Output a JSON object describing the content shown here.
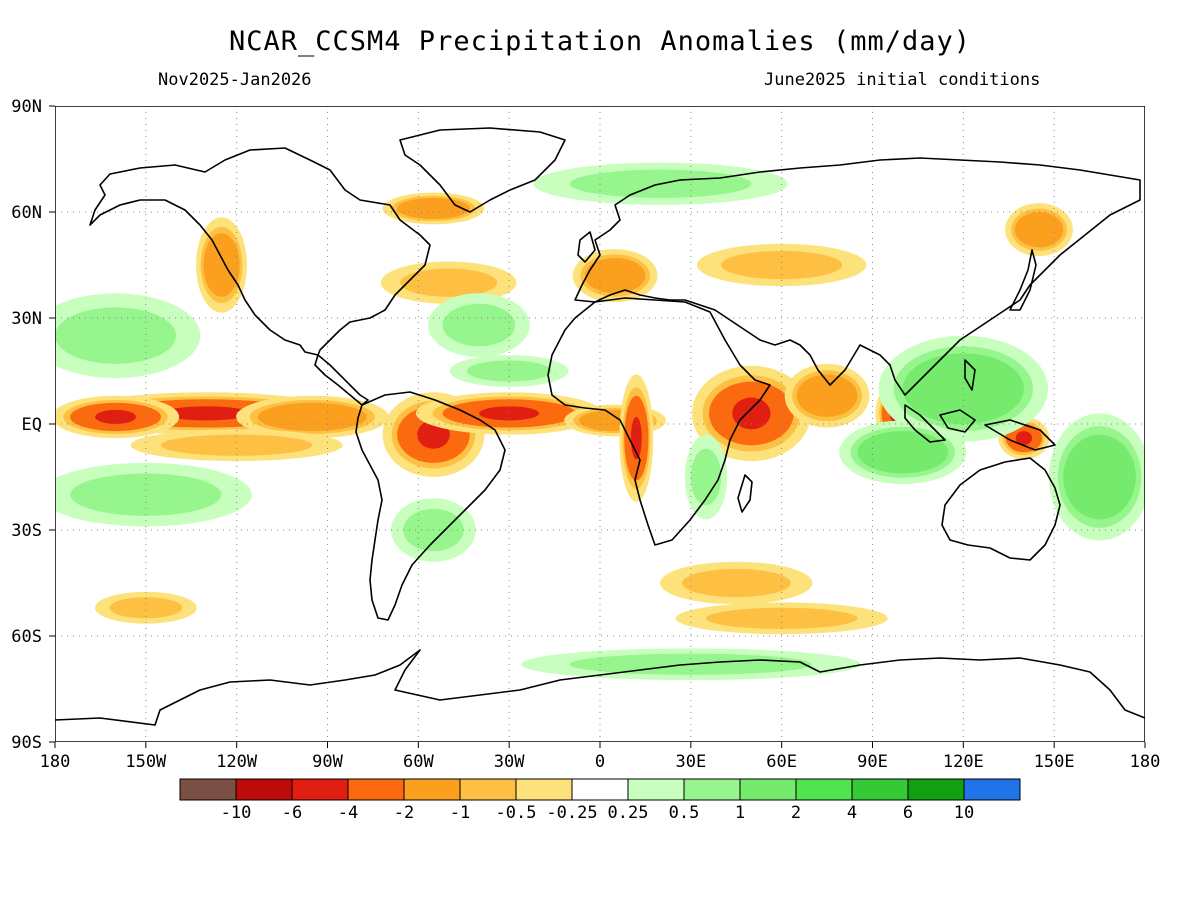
{
  "title": "NCAR_CCSM4 Precipitation Anomalies (mm/day)",
  "subtitle_left": "Nov2025-Jan2026",
  "subtitle_right": "June2025 initial conditions",
  "map": {
    "projection": "cylindrical-equidistant",
    "lon_range": [
      -180,
      180
    ],
    "lat_range": [
      -90,
      90
    ],
    "lat_labels": [
      "90N",
      "60N",
      "30N",
      "EQ",
      "30S",
      "60S",
      "90S"
    ],
    "lon_labels": [
      "180",
      "150W",
      "120W",
      "90W",
      "60W",
      "30W",
      "0",
      "30E",
      "60E",
      "90E",
      "120E",
      "150E",
      "180"
    ],
    "gridlines": "dotted",
    "coastline_color": "#000000"
  },
  "legend": {
    "colors": [
      "#7a4f44",
      "#bd0a0a",
      "#e01e12",
      "#fb6a0e",
      "#fba01e",
      "#fdc043",
      "#fde27b",
      "#ffffff",
      "#c8ffbe",
      "#96f58c",
      "#76ea6c",
      "#50e44e",
      "#35c935",
      "#12a012",
      "#2073e8"
    ],
    "labels": [
      "-10",
      "-6",
      "-4",
      "-2",
      "-1",
      "-0.5",
      "-0.25",
      "0.25",
      "0.5",
      "1",
      "2",
      "4",
      "6",
      "10"
    ]
  },
  "anomaly_regions": [
    {
      "lon": -130,
      "lat": 3,
      "rx": 32,
      "ry": 4,
      "level": -2
    },
    {
      "lon": -95,
      "lat": 2,
      "rx": 18,
      "ry": 4,
      "level": -1
    },
    {
      "lon": -160,
      "lat": 2,
      "rx": 15,
      "ry": 4,
      "level": -2
    },
    {
      "lon": -120,
      "lat": -6,
      "rx": 25,
      "ry": 3,
      "level": -0.5
    },
    {
      "lon": -55,
      "lat": -3,
      "rx": 12,
      "ry": 8,
      "level": -2
    },
    {
      "lon": -30,
      "lat": 3,
      "rx": 22,
      "ry": 4,
      "level": -2
    },
    {
      "lon": 5,
      "lat": 1,
      "rx": 12,
      "ry": 3,
      "level": -1
    },
    {
      "lon": 12,
      "lat": -4,
      "rx": 4,
      "ry": 12,
      "level": -2
    },
    {
      "lon": 50,
      "lat": 3,
      "rx": 14,
      "ry": 9,
      "level": -2
    },
    {
      "lon": 75,
      "lat": 8,
      "rx": 10,
      "ry": 6,
      "level": -1
    },
    {
      "lon": 98,
      "lat": 3,
      "rx": 5,
      "ry": 6,
      "level": -2
    },
    {
      "lon": 140,
      "lat": -4,
      "rx": 6,
      "ry": 4,
      "level": -2
    },
    {
      "lon": -125,
      "lat": 45,
      "rx": 6,
      "ry": 9,
      "level": -1
    },
    {
      "lon": -50,
      "lat": 40,
      "rx": 16,
      "ry": 4,
      "level": -0.5
    },
    {
      "lon": 5,
      "lat": 42,
      "rx": 10,
      "ry": 5,
      "level": -1
    },
    {
      "lon": 60,
      "lat": 45,
      "rx": 20,
      "ry": 4,
      "level": -0.5
    },
    {
      "lon": 145,
      "lat": 55,
      "rx": 8,
      "ry": 5,
      "level": -1
    },
    {
      "lon": -55,
      "lat": 61,
      "rx": 12,
      "ry": 3,
      "level": -1
    },
    {
      "lon": 45,
      "lat": -45,
      "rx": 18,
      "ry": 4,
      "level": -0.5
    },
    {
      "lon": 60,
      "lat": -55,
      "rx": 25,
      "ry": 3,
      "level": -0.5
    },
    {
      "lon": -150,
      "lat": -52,
      "rx": 12,
      "ry": 3,
      "level": -0.5
    },
    {
      "lon": -150,
      "lat": -20,
      "rx": 25,
      "ry": 6,
      "level": 0.5
    },
    {
      "lon": -160,
      "lat": 25,
      "rx": 20,
      "ry": 8,
      "level": 0.5
    },
    {
      "lon": 120,
      "lat": 10,
      "rx": 20,
      "ry": 10,
      "level": 1
    },
    {
      "lon": 100,
      "lat": -8,
      "rx": 15,
      "ry": 6,
      "level": 1
    },
    {
      "lon": 165,
      "lat": -15,
      "rx": 12,
      "ry": 12,
      "level": 1
    },
    {
      "lon": 30,
      "lat": -68,
      "rx": 40,
      "ry": 3,
      "level": 0.5
    },
    {
      "lon": -40,
      "lat": 28,
      "rx": 12,
      "ry": 6,
      "level": 0.5
    },
    {
      "lon": 20,
      "lat": 68,
      "rx": 30,
      "ry": 4,
      "level": 0.5
    },
    {
      "lon": -30,
      "lat": 15,
      "rx": 14,
      "ry": 3,
      "level": 0.5
    },
    {
      "lon": -55,
      "lat": -30,
      "rx": 10,
      "ry": 6,
      "level": 0.5
    },
    {
      "lon": 35,
      "lat": -15,
      "rx": 5,
      "ry": 8,
      "level": 0.5
    }
  ]
}
